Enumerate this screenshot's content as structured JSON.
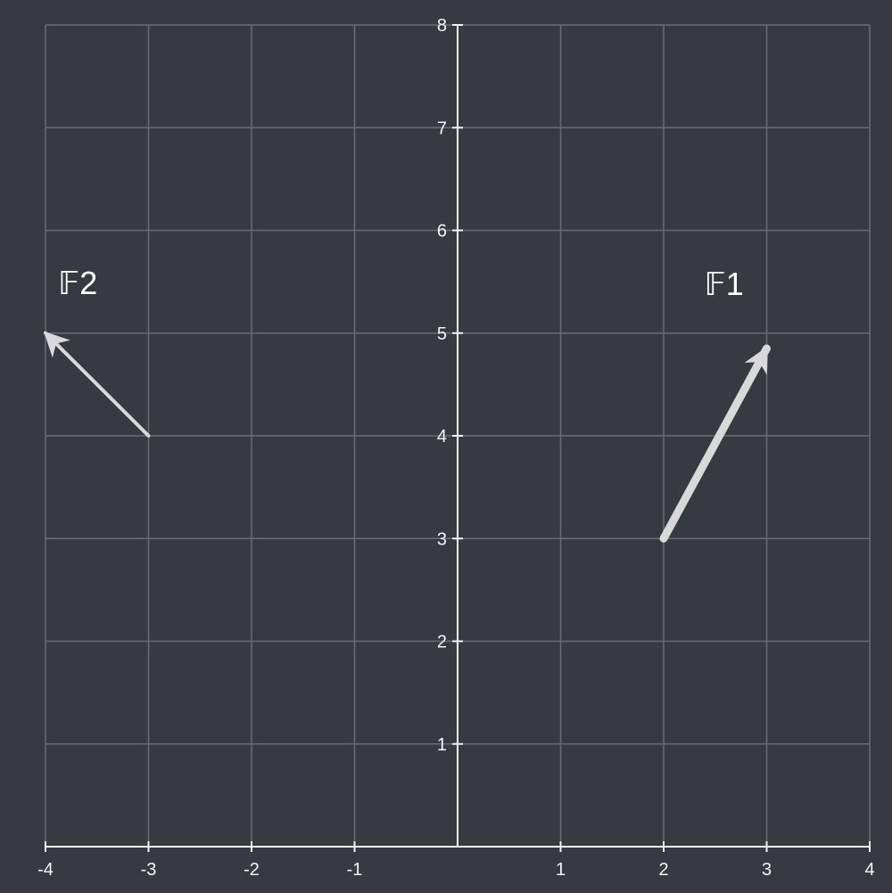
{
  "diagram": {
    "x_range": [
      -4,
      4
    ],
    "y_range": [
      0,
      8
    ],
    "x_ticks": [
      "-4",
      "-3",
      "-2",
      "-1",
      "1",
      "2",
      "3",
      "4"
    ],
    "y_ticks": [
      "1",
      "2",
      "3",
      "4",
      "5",
      "6",
      "7",
      "8"
    ],
    "colors": {
      "background": "#373a40",
      "grid": "#6a6c70",
      "axis": "#f2f2f2",
      "vector": "#d9d9d9"
    },
    "vectors": [
      {
        "label": "𝔽1",
        "from": [
          2,
          3
        ],
        "to": [
          3,
          4.85
        ],
        "weight": "thick"
      },
      {
        "label": "𝔽2",
        "from": [
          -3,
          4
        ],
        "to": [
          -4,
          5
        ],
        "weight": "thin"
      }
    ]
  }
}
